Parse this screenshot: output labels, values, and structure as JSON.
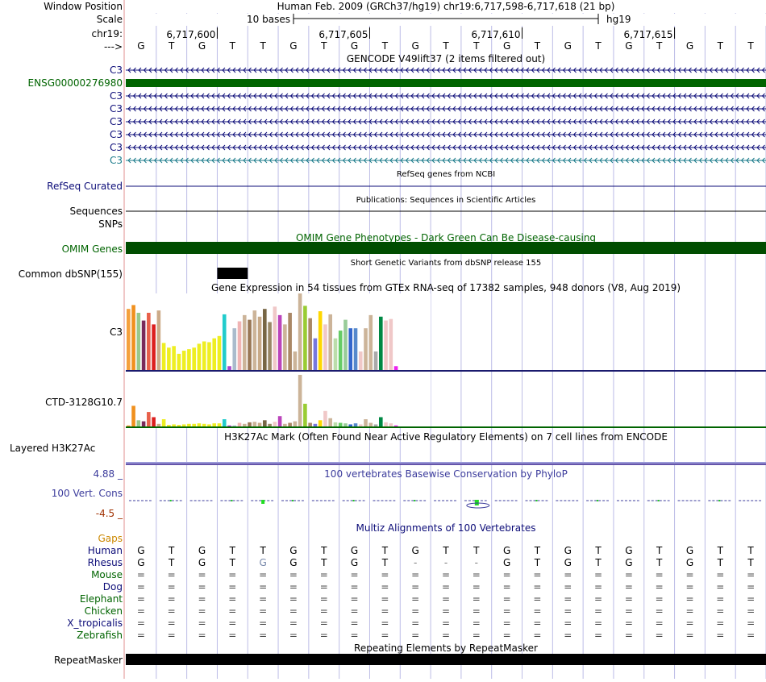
{
  "header": {
    "window_position_label": "Window Position",
    "window_position_value": "Human Feb. 2009 (GRCh37/hg19)   chr19:6,717,598-6,717,618 (21 bp)",
    "scale_label": "Scale",
    "scale_value": "10 bases",
    "scale_db": "hg19",
    "chrom_label": "chr19:",
    "strand_label": "--->",
    "positions": [
      "6,717,600",
      "6,717,605",
      "6,717,610",
      "6,717,615"
    ]
  },
  "bases": [
    "G",
    "T",
    "G",
    "T",
    "T",
    "G",
    "T",
    "G",
    "T",
    "G",
    "T",
    "T",
    "G",
    "T",
    "G",
    "T",
    "G",
    "T",
    "G",
    "T",
    "T"
  ],
  "tracks": {
    "gencode": {
      "title": "GENCODE V49lift37 (2 items filtered out)",
      "rows": [
        {
          "label": "C3",
          "color": "#0c0c78",
          "style": "arrows"
        },
        {
          "label": "ENSG00000276980",
          "color": "#006400",
          "style": "bar"
        },
        {
          "label": "C3",
          "color": "#0c0c78",
          "style": "arrows"
        },
        {
          "label": "C3",
          "color": "#0c0c78",
          "style": "arrows"
        },
        {
          "label": "C3",
          "color": "#0c0c78",
          "style": "arrows"
        },
        {
          "label": "C3",
          "color": "#0c0c78",
          "style": "arrows"
        },
        {
          "label": "C3",
          "color": "#0c0c78",
          "style": "arrows"
        },
        {
          "label": "C3",
          "color": "#1a7a8a",
          "style": "arrows"
        }
      ]
    },
    "refseq": {
      "title": "RefSeq genes from NCBI",
      "label": "RefSeq Curated"
    },
    "publications": {
      "title": "Publications: Sequences in Scientific Articles",
      "label_1": "Sequences",
      "label_2": "SNPs"
    },
    "omim": {
      "title": "OMIM Gene Phenotypes - Dark Green Can Be Disease-causing",
      "label": "OMIM Genes"
    },
    "dbsnp": {
      "title": "Short Genetic Variants from dbSNP release 155",
      "label": "Common dbSNP(155)"
    },
    "gtex": {
      "title": "Gene Expression in 54 tissues from GTEx RNA-seq of 17382 samples, 948 donors (V8, Aug 2019)",
      "label_1": "C3",
      "label_2": "CTD-3128G10.7"
    },
    "h3k27ac": {
      "title": "H3K27Ac Mark (Often Found Near Active Regulatory Elements) on 7 cell lines from ENCODE",
      "label": "Layered H3K27Ac"
    },
    "phylop": {
      "title": "100 vertebrates Basewise Conservation by PhyloP",
      "label": "100 Vert. Cons",
      "max": "4.88 _",
      "min": "-4.5 _"
    },
    "multiz": {
      "title": "Multiz Alignments of 100 Vertebrates",
      "gaps_label": "Gaps",
      "species": [
        {
          "label": "Human",
          "color": "#0c0c78",
          "bases": [
            "G",
            "T",
            "G",
            "T",
            "T",
            "G",
            "T",
            "G",
            "T",
            "G",
            "T",
            "T",
            "G",
            "T",
            "G",
            "T",
            "G",
            "T",
            "G",
            "T",
            "T"
          ]
        },
        {
          "label": "Rhesus",
          "color": "#0c0c78",
          "bases": [
            "G",
            "T",
            "G",
            "T",
            "G",
            "G",
            "T",
            "G",
            "T",
            "-",
            "-",
            "-",
            "G",
            "T",
            "G",
            "T",
            "G",
            "T",
            "G",
            "T",
            "T"
          ]
        },
        {
          "label": "Mouse",
          "color": "#006400",
          "bases": [
            "=",
            "=",
            "=",
            "=",
            "=",
            "=",
            "=",
            "=",
            "=",
            "=",
            "=",
            "=",
            "=",
            "=",
            "=",
            "=",
            "=",
            "=",
            "=",
            "=",
            "="
          ]
        },
        {
          "label": "Dog",
          "color": "#0c0c78",
          "bases": [
            "=",
            "=",
            "=",
            "=",
            "=",
            "=",
            "=",
            "=",
            "=",
            "=",
            "=",
            "=",
            "=",
            "=",
            "=",
            "=",
            "=",
            "=",
            "=",
            "=",
            "="
          ]
        },
        {
          "label": "Elephant",
          "color": "#006400",
          "bases": [
            "=",
            "=",
            "=",
            "=",
            "=",
            "=",
            "=",
            "=",
            "=",
            "=",
            "=",
            "=",
            "=",
            "=",
            "=",
            "=",
            "=",
            "=",
            "=",
            "=",
            "="
          ]
        },
        {
          "label": "Chicken",
          "color": "#006400",
          "bases": [
            "=",
            "=",
            "=",
            "=",
            "=",
            "=",
            "=",
            "=",
            "=",
            "=",
            "=",
            "=",
            "=",
            "=",
            "=",
            "=",
            "=",
            "=",
            "=",
            "=",
            "="
          ]
        },
        {
          "label": "X_tropicalis",
          "color": "#0c0c78",
          "bases": [
            "=",
            "=",
            "=",
            "=",
            "=",
            "=",
            "=",
            "=",
            "=",
            "=",
            "=",
            "=",
            "=",
            "=",
            "=",
            "=",
            "=",
            "=",
            "=",
            "=",
            "="
          ]
        },
        {
          "label": "Zebrafish",
          "color": "#006400",
          "bases": [
            "=",
            "=",
            "=",
            "=",
            "=",
            "=",
            "=",
            "=",
            "=",
            "=",
            "=",
            "=",
            "=",
            "=",
            "=",
            "=",
            "=",
            "=",
            "=",
            "=",
            "="
          ]
        }
      ]
    },
    "repeatmasker": {
      "title": "Repeating Elements by RepeatMasker",
      "label": "RepeatMasker"
    }
  },
  "gtex_data": {
    "c3": [
      {
        "v": 0.8,
        "c": "#f5a03c"
      },
      {
        "v": 0.85,
        "c": "#f0901e"
      },
      {
        "v": 0.75,
        "c": "#99c88c"
      },
      {
        "v": 0.65,
        "c": "#7a2a5a"
      },
      {
        "v": 0.75,
        "c": "#e8604a"
      },
      {
        "v": 0.6,
        "c": "#dc1e1e"
      },
      {
        "v": 0.78,
        "c": "#ccaa88"
      },
      {
        "v": 0.36,
        "c": "#eeee22"
      },
      {
        "v": 0.3,
        "c": "#eeee22"
      },
      {
        "v": 0.32,
        "c": "#eeee22"
      },
      {
        "v": 0.22,
        "c": "#eeee22"
      },
      {
        "v": 0.26,
        "c": "#eeee22"
      },
      {
        "v": 0.28,
        "c": "#eeee22"
      },
      {
        "v": 0.3,
        "c": "#eeee22"
      },
      {
        "v": 0.35,
        "c": "#eeee22"
      },
      {
        "v": 0.38,
        "c": "#eeee22"
      },
      {
        "v": 0.37,
        "c": "#eeee22"
      },
      {
        "v": 0.42,
        "c": "#eeee22"
      },
      {
        "v": 0.45,
        "c": "#eeee22"
      },
      {
        "v": 0.73,
        "c": "#22cccc"
      },
      {
        "v": 0.06,
        "c": "#aa44cc"
      },
      {
        "v": 0.55,
        "c": "#aabbcc"
      },
      {
        "v": 0.64,
        "c": "#f0b4b4"
      },
      {
        "v": 0.72,
        "c": "#ccb499"
      },
      {
        "v": 0.66,
        "c": "#997755"
      },
      {
        "v": 0.78,
        "c": "#ccb499"
      },
      {
        "v": 0.7,
        "c": "#c8aa88"
      },
      {
        "v": 0.8,
        "c": "#776644"
      },
      {
        "v": 0.63,
        "c": "#998866"
      },
      {
        "v": 0.83,
        "c": "#f0c8c8"
      },
      {
        "v": 0.72,
        "c": "#bb44bb"
      },
      {
        "v": 0.6,
        "c": "#ccb499"
      },
      {
        "v": 0.75,
        "c": "#aa8866"
      },
      {
        "v": 0.25,
        "c": "#ccb499"
      },
      {
        "v": 1.0,
        "c": "#ccb499"
      },
      {
        "v": 0.84,
        "c": "#99cc33"
      },
      {
        "v": 0.68,
        "c": "#aa8866"
      },
      {
        "v": 0.42,
        "c": "#7777dd"
      },
      {
        "v": 0.77,
        "c": "#ffd700"
      },
      {
        "v": 0.6,
        "c": "#f0c8c8"
      },
      {
        "v": 0.73,
        "c": "#ccb499"
      },
      {
        "v": 0.42,
        "c": "#bbddaa"
      },
      {
        "v": 0.52,
        "c": "#66cc66"
      },
      {
        "v": 0.66,
        "c": "#99cc99"
      },
      {
        "v": 0.55,
        "c": "#3366cc"
      },
      {
        "v": 0.55,
        "c": "#5588cc"
      },
      {
        "v": 0.25,
        "c": "#f0c8c8"
      },
      {
        "v": 0.55,
        "c": "#ccb499"
      },
      {
        "v": 0.72,
        "c": "#ccb499"
      },
      {
        "v": 0.25,
        "c": "#aaaaaa"
      },
      {
        "v": 0.7,
        "c": "#008844"
      },
      {
        "v": 0.65,
        "c": "#f0c8c8"
      },
      {
        "v": 0.67,
        "c": "#f0c8c8"
      },
      {
        "v": 0.06,
        "c": "#ee22ee"
      }
    ],
    "ctd": [
      0.02,
      0.4,
      0.12,
      0.1,
      0.28,
      0.18,
      0.05,
      0.14,
      0.03,
      0.04,
      0.03,
      0.04,
      0.05,
      0.05,
      0.06,
      0.05,
      0.04,
      0.06,
      0.06,
      0.14,
      0.02,
      0.02,
      0.07,
      0.05,
      0.08,
      0.09,
      0.07,
      0.12,
      0.05,
      0.09,
      0.2,
      0.05,
      0.07,
      0.1,
      1.0,
      0.44,
      0.07,
      0.05,
      0.12,
      0.3,
      0.16,
      0.08,
      0.07,
      0.06,
      0.04,
      0.06,
      0.04,
      0.14,
      0.07,
      0.04,
      0.18,
      0.08,
      0.06,
      0.02
    ]
  },
  "colors": {
    "grid": "#bcbce6",
    "divider": "#e28f8f",
    "gencode_blue": "#0c0c78",
    "dark_green": "#006400",
    "omim_green": "#004d00",
    "phylop_blue": "#3c3c9c",
    "phylop_red": "#a03000",
    "gaps_orange": "#cc8800",
    "h3k_purple": "#6655aa"
  }
}
